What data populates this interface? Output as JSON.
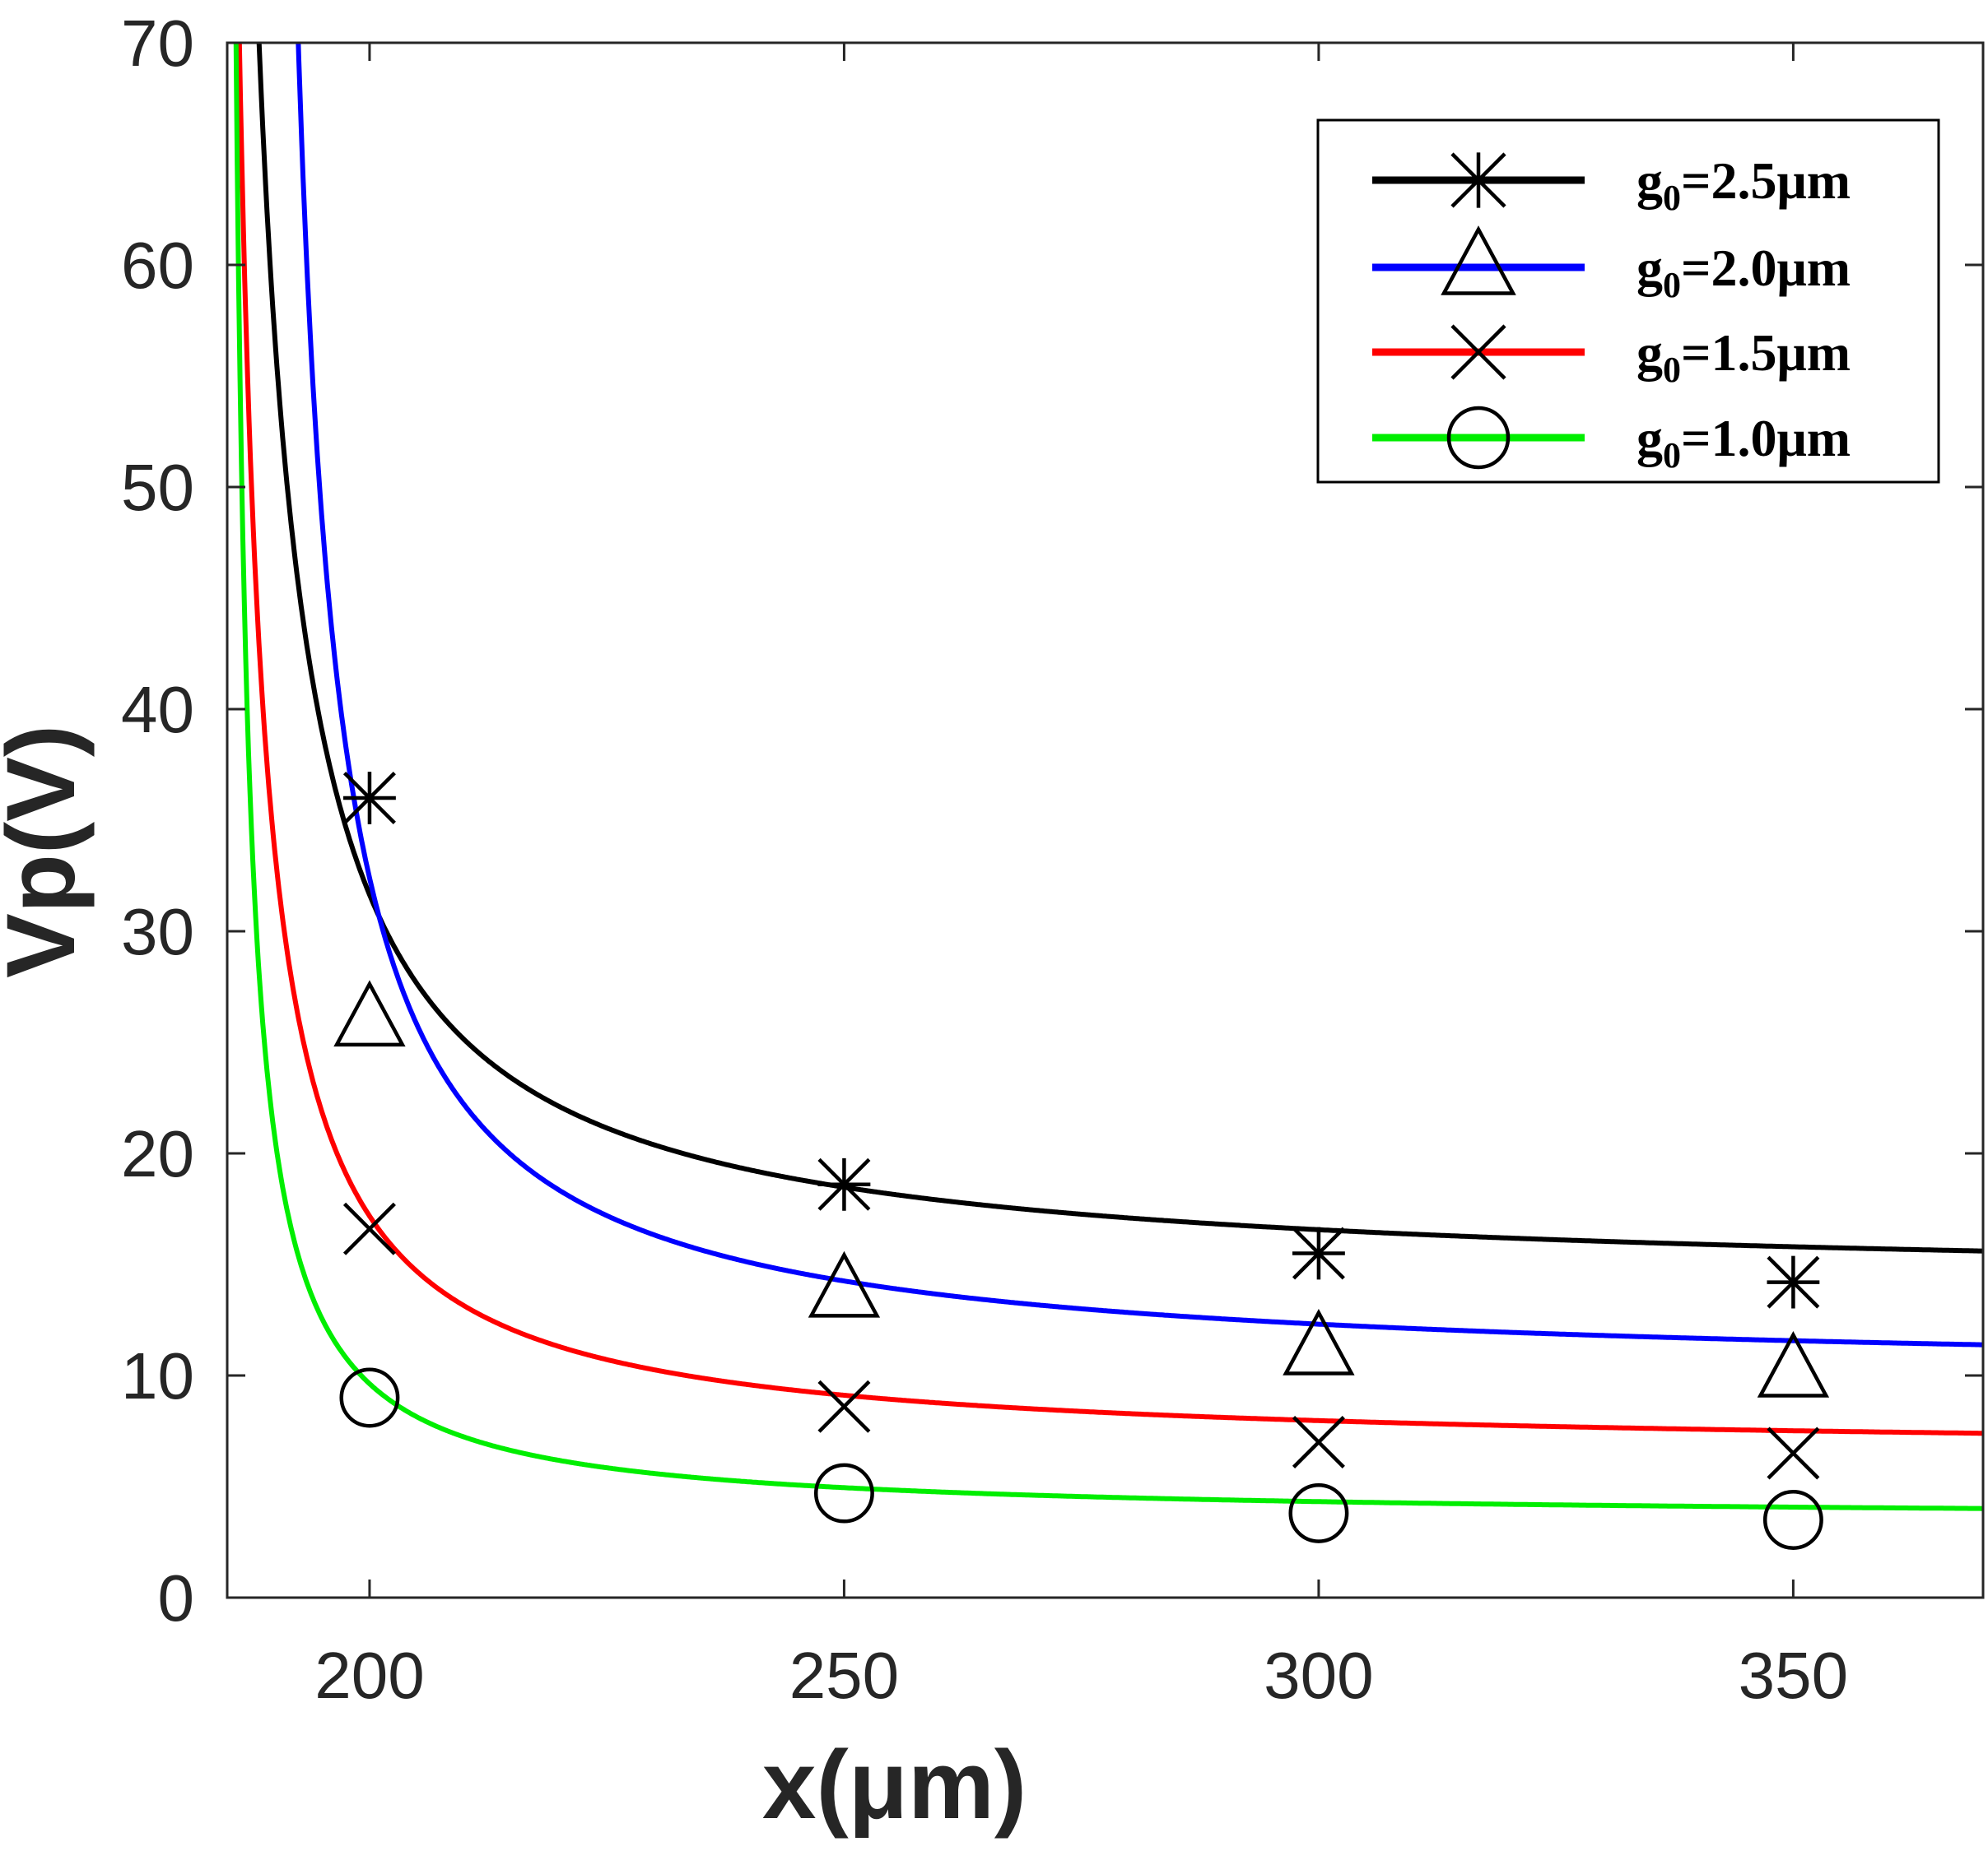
{
  "chart_data": {
    "type": "line",
    "title": "",
    "xlabel": "x(μm)",
    "ylabel": "Vp(V)",
    "xlim": [
      185,
      370
    ],
    "ylim": [
      0,
      70
    ],
    "xticks": [
      "200",
      "250",
      "300",
      "350"
    ],
    "yticks": [
      "0",
      "10",
      "20",
      "30",
      "40",
      "50",
      "60",
      "70"
    ],
    "grid": false,
    "legend_position": "top-right",
    "series": [
      {
        "name": "g0=2.5μm",
        "name_parts": {
          "base": "g",
          "sub": "0",
          "rest": "=2.5μm"
        },
        "color": "#000000",
        "marker": "asterisk",
        "curve": {
          "v_inf": 14.0,
          "k": 300,
          "x0": 183
        },
        "markers": {
          "x": [
            200,
            250,
            300,
            350
          ],
          "y": [
            36.0,
            18.6,
            15.5,
            14.2
          ]
        }
      },
      {
        "name": "g0=2.0μm",
        "name_parts": {
          "base": "g",
          "sub": "0",
          "rest": "=2.0μm"
        },
        "color": "#0000ff",
        "marker": "triangle",
        "curve": {
          "v_inf": 9.9,
          "k": 270,
          "x0": 188
        },
        "markers": {
          "x": [
            200,
            250,
            300,
            350
          ],
          "y": [
            26.0,
            13.8,
            11.2,
            10.2
          ]
        }
      },
      {
        "name": "g0=1.5μm",
        "name_parts": {
          "base": "g",
          "sub": "0",
          "rest": "=1.5μm"
        },
        "color": "#ff0000",
        "marker": "x",
        "curve": {
          "v_inf": 6.45,
          "k": 177,
          "x0": 183.5
        },
        "markers": {
          "x": [
            200,
            250,
            300,
            350
          ],
          "y": [
            16.6,
            8.6,
            7.0,
            6.5
          ]
        }
      },
      {
        "name": "g0=1.0μm",
        "name_parts": {
          "base": "g",
          "sub": "0",
          "rest": "=1.0μm"
        },
        "color": "#00ee00",
        "marker": "circle",
        "curve": {
          "v_inf": 3.5,
          "k": 95,
          "x0": 184.5
        },
        "markers": {
          "x": [
            200,
            250,
            300,
            350
          ],
          "y": [
            9.0,
            4.7,
            3.8,
            3.5
          ]
        }
      }
    ]
  }
}
